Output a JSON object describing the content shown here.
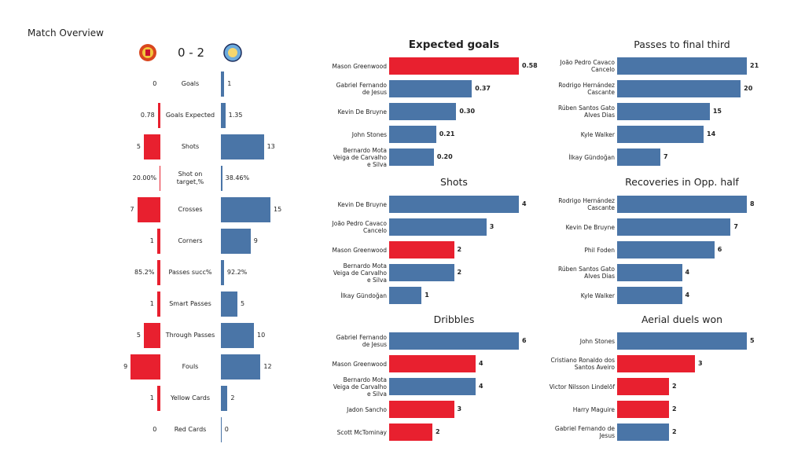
{
  "overview": {
    "title": "Match Overview",
    "score": "0 - 2",
    "home_color": "#e8202f",
    "away_color": "#4a75a7",
    "home_logo": "manchester-united-crest",
    "away_logo": "manchester-city-crest",
    "rows": [
      {
        "label": "Goals",
        "home": 0,
        "away": 1,
        "home_text": "0",
        "away_text": "1"
      },
      {
        "label": "Goals Expected",
        "home": 0.78,
        "away": 1.35,
        "home_text": "0.78",
        "away_text": "1.35"
      },
      {
        "label": "Shots",
        "home": 5,
        "away": 13,
        "home_text": "5",
        "away_text": "13"
      },
      {
        "label": "Shot on\ntarget,%",
        "home": 0.2,
        "away": 0.3846,
        "home_text": "20.00%",
        "away_text": "38.46%"
      },
      {
        "label": "Crosses",
        "home": 7,
        "away": 15,
        "home_text": "7",
        "away_text": "15"
      },
      {
        "label": "Corners",
        "home": 1,
        "away": 9,
        "home_text": "1",
        "away_text": "9"
      },
      {
        "label": "Passes succ%",
        "home": 0.852,
        "away": 0.922,
        "home_text": "85.2%",
        "away_text": "92.2%"
      },
      {
        "label": "Smart Passes",
        "home": 1,
        "away": 5,
        "home_text": "1",
        "away_text": "5"
      },
      {
        "label": "Through Passes",
        "home": 5,
        "away": 10,
        "home_text": "5",
        "away_text": "10"
      },
      {
        "label": "Fouls",
        "home": 9,
        "away": 12,
        "home_text": "9",
        "away_text": "12"
      },
      {
        "label": "Yellow Cards",
        "home": 1,
        "away": 2,
        "home_text": "1",
        "away_text": "2"
      },
      {
        "label": "Red Cards",
        "home": 0,
        "away": 0,
        "home_text": "0",
        "away_text": "0"
      }
    ]
  },
  "chart_data": [
    {
      "type": "bar",
      "title": "Expected goals",
      "bold_title": true,
      "categories": [
        "Mason Greenwood",
        "Gabriel Fernando\nde Jesus",
        "Kevin De Bruyne",
        "John Stones",
        "Bernardo Mota\nVeiga de Carvalho\ne Silva"
      ],
      "values": [
        0.58,
        0.37,
        0.3,
        0.21,
        0.2
      ],
      "labels": [
        "0.58",
        "0.37",
        "0.30",
        "0.21",
        "0.20"
      ],
      "teams": [
        "home",
        "away",
        "away",
        "away",
        "away"
      ]
    },
    {
      "type": "bar",
      "title": "Shots",
      "categories": [
        "Kevin De Bruyne",
        "João Pedro Cavaco\nCancelo",
        "Mason Greenwood",
        "Bernardo Mota\nVeiga de Carvalho\ne Silva",
        "İlkay Gündoğan"
      ],
      "values": [
        4,
        3,
        2,
        2,
        1
      ],
      "labels": [
        "4",
        "3",
        "2",
        "2",
        "1"
      ],
      "teams": [
        "away",
        "away",
        "home",
        "away",
        "away"
      ]
    },
    {
      "type": "bar",
      "title": "Dribbles",
      "categories": [
        "Gabriel Fernando\nde Jesus",
        "Mason Greenwood",
        "Bernardo Mota\nVeiga de Carvalho\ne Silva",
        "Jadon Sancho",
        "Scott McTominay"
      ],
      "values": [
        6,
        4,
        4,
        3,
        2
      ],
      "labels": [
        "6",
        "4",
        "4",
        "3",
        "2"
      ],
      "teams": [
        "away",
        "home",
        "away",
        "home",
        "home"
      ]
    },
    {
      "type": "bar",
      "title": "Passes to final third",
      "categories": [
        "João Pedro Cavaco\nCancelo",
        "Rodrigo Hernández\nCascante",
        "Rúben  Santos Gato\nAlves Dias",
        "Kyle Walker",
        "İlkay Gündoğan"
      ],
      "values": [
        21,
        20,
        15,
        14,
        7
      ],
      "labels": [
        "21",
        "20",
        "15",
        "14",
        "7"
      ],
      "teams": [
        "away",
        "away",
        "away",
        "away",
        "away"
      ]
    },
    {
      "type": "bar",
      "title": "Recoveries in Opp. half",
      "categories": [
        "Rodrigo Hernández\nCascante",
        "Kevin De Bruyne",
        "Phil Foden",
        "Rúben  Santos Gato\nAlves Dias",
        "Kyle Walker"
      ],
      "values": [
        8,
        7,
        6,
        4,
        4
      ],
      "labels": [
        "8",
        "7",
        "6",
        "4",
        "4"
      ],
      "teams": [
        "away",
        "away",
        "away",
        "away",
        "away"
      ]
    },
    {
      "type": "bar",
      "title": "Aerial duels won",
      "categories": [
        "John Stones",
        "Cristiano Ronaldo dos\nSantos Aveiro",
        "Victor Nilsson Lindelöf",
        "Harry  Maguire",
        "Gabriel Fernando de\nJesus"
      ],
      "values": [
        5,
        3,
        2,
        2,
        2
      ],
      "labels": [
        "5",
        "3",
        "2",
        "2",
        "2"
      ],
      "teams": [
        "away",
        "home",
        "home",
        "home",
        "away"
      ]
    }
  ]
}
